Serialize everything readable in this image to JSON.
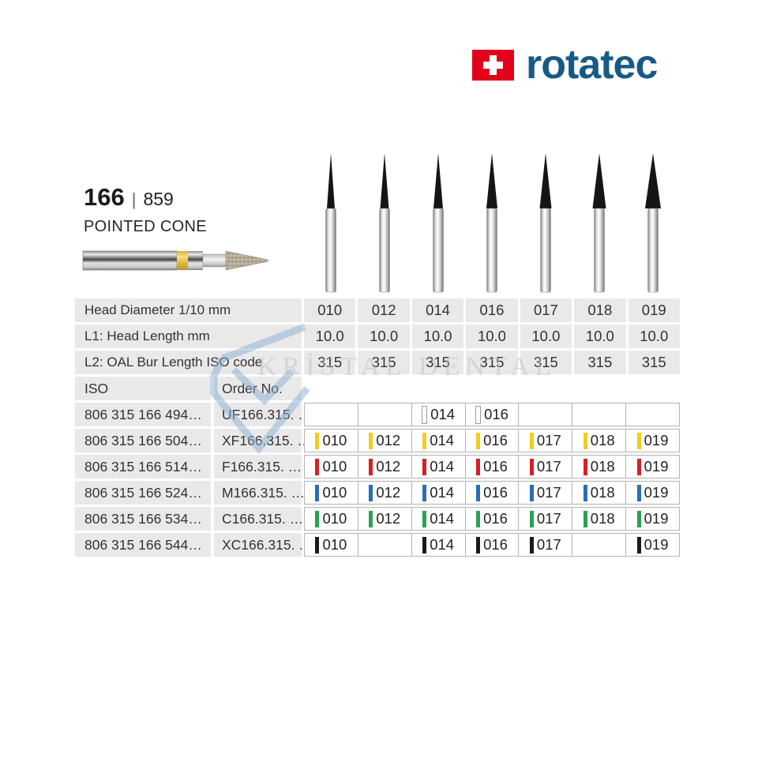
{
  "brand": {
    "name": "rotatec",
    "text_color": "#175a85",
    "flag_color": "#e2001a",
    "flag_icon": "swiss-flag-icon"
  },
  "product": {
    "number": "166",
    "divider": "|",
    "iso_code": "859",
    "name": "POINTED CONE"
  },
  "watermark": {
    "text": "KRİSTAL DENTAL",
    "icon": "diamond-icon"
  },
  "columns": [
    "010",
    "012",
    "014",
    "016",
    "017",
    "018",
    "019"
  ],
  "spec_rows": [
    {
      "label": "Head Diameter 1/10 mm",
      "values": [
        "010",
        "012",
        "014",
        "016",
        "017",
        "018",
        "019"
      ]
    },
    {
      "label": "L1: Head Length mm",
      "values": [
        "10.0",
        "10.0",
        "10.0",
        "10.0",
        "10.0",
        "10.0",
        "10.0"
      ]
    },
    {
      "label": "L2: OAL Bur Length ISO code",
      "values": [
        "315",
        "315",
        "315",
        "315",
        "315",
        "315",
        "315"
      ]
    }
  ],
  "order_header": {
    "iso": "ISO",
    "order_no": "Order No."
  },
  "order_rows": [
    {
      "iso": "806 315 166 494…",
      "order_no": "UF166.315. …",
      "band_color": "#ffffff",
      "band_border": "#9a9a9a",
      "cells": [
        "",
        "",
        "014",
        "016",
        "",
        "",
        ""
      ]
    },
    {
      "iso": "806 315 166 504…",
      "order_no": "XF166.315. …",
      "band_color": "#f2cd1d",
      "band_border": "",
      "cells": [
        "010",
        "012",
        "014",
        "016",
        "017",
        "018",
        "019"
      ]
    },
    {
      "iso": "806 315 166 514…",
      "order_no": "F166.315. …",
      "band_color": "#d42127",
      "band_border": "",
      "cells": [
        "010",
        "012",
        "014",
        "016",
        "017",
        "018",
        "019"
      ]
    },
    {
      "iso": "806 315 166 524…",
      "order_no": "M166.315. …",
      "band_color": "#2a6db4",
      "band_border": "",
      "cells": [
        "010",
        "012",
        "014",
        "016",
        "017",
        "018",
        "019"
      ]
    },
    {
      "iso": "806 315 166 534…",
      "order_no": "C166.315. …",
      "band_color": "#2aa152",
      "band_border": "",
      "cells": [
        "010",
        "012",
        "014",
        "016",
        "017",
        "018",
        "019"
      ]
    },
    {
      "iso": "806 315 166 544…",
      "order_no": "XC166.315. …",
      "band_color": "#1a1a1a",
      "band_border": "",
      "cells": [
        "010",
        "",
        "014",
        "016",
        "017",
        "",
        "019"
      ]
    }
  ]
}
